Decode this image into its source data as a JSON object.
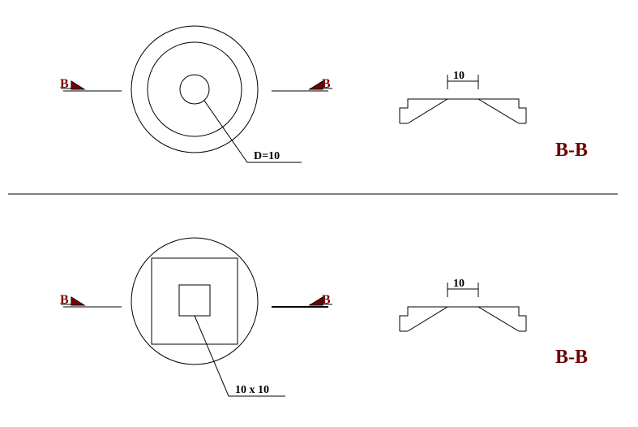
{
  "top_detail": {
    "section_mark_left": "B",
    "section_mark_right": "B",
    "hole_label": "D=10",
    "dimension_label": "10",
    "section_title": "B-B"
  },
  "bottom_detail": {
    "section_mark_left": "B",
    "section_mark_right": "B",
    "hole_label": "10 x 10",
    "dimension_label": "10",
    "section_title": "B-B"
  },
  "colors": {
    "line": "#000000",
    "section_mark": "#7a0000",
    "title": "#6b0000"
  }
}
